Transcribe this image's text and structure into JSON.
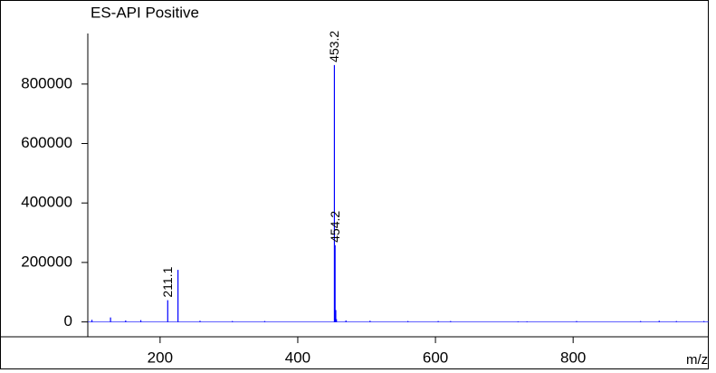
{
  "chart_data": {
    "type": "stick",
    "title": "ES-API Positive",
    "x_label": "m/z",
    "color": "#0000ff",
    "title_color": "#1a1aff",
    "peaks": {
      "x": [
        211.1,
        453.2,
        454.2
      ],
      "values": [
        73000,
        864000,
        258000
      ]
    },
    "minor_peaks": {
      "x": [
        101,
        128,
        150,
        172,
        226,
        258,
        305,
        352,
        455.2,
        456.2,
        470,
        505,
        560,
        604,
        622,
        720,
        733,
        805,
        898,
        925,
        950,
        990
      ],
      "values": [
        7000,
        15000,
        5000,
        6000,
        175000,
        4000,
        3000,
        3000,
        40000,
        9000,
        5000,
        4000,
        3000,
        3000,
        3000,
        2000,
        2000,
        3000,
        3000,
        4000,
        3000,
        3000
      ]
    },
    "xlim": [
      95,
      997
    ],
    "ylim": [
      -50000,
      970000
    ],
    "xticks": [
      200,
      400,
      600,
      800
    ],
    "yticks": [
      0,
      200000,
      400000,
      600000,
      800000
    ]
  }
}
